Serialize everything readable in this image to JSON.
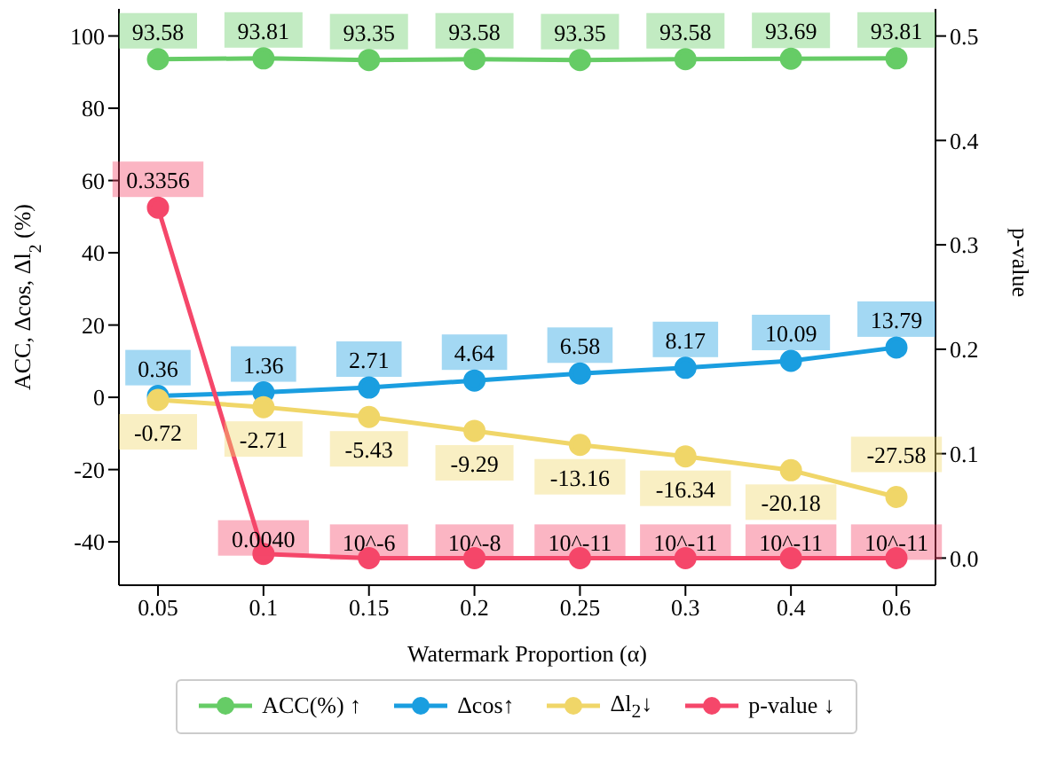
{
  "chart_data": {
    "type": "line",
    "xlabel": "Watermark Proportion (α)",
    "ylabel": "ACC, Δcos, Δl$_{2}$ (%)",
    "y2label": "p-value",
    "categories": [
      "0.05",
      "0.1",
      "0.15",
      "0.2",
      "0.25",
      "0.3",
      "0.4",
      "0.6"
    ],
    "series": [
      {
        "name": "ACC(%) ↑",
        "color": "#66cc66",
        "values": [
          93.58,
          93.81,
          93.35,
          93.58,
          93.35,
          93.58,
          93.69,
          93.81
        ],
        "value_labels": [
          "93.58",
          "93.81",
          "93.35",
          "93.58",
          "93.35",
          "93.58",
          "93.69",
          "93.81"
        ]
      },
      {
        "name": "Δcos↑",
        "color": "#1a9ee0",
        "values": [
          0.36,
          1.36,
          2.71,
          4.64,
          6.58,
          8.17,
          10.09,
          13.79
        ],
        "value_labels": [
          "0.36",
          "1.36",
          "2.71",
          "4.64",
          "6.58",
          "8.17",
          "10.09",
          "13.79"
        ]
      },
      {
        "name": "Δl$_{2}$↓",
        "color": "#f0d668",
        "values": [
          -0.72,
          -2.71,
          -5.43,
          -9.29,
          -13.16,
          -16.34,
          -20.18,
          -27.58
        ],
        "value_labels": [
          "-0.72",
          "-2.71",
          "-5.43",
          "-9.29",
          "-13.16",
          "-16.34",
          "-20.18",
          "-27.58"
        ]
      },
      {
        "name": "p-value ↓",
        "color": "#f5476a",
        "axis": "y2",
        "values": [
          0.3356,
          0.004,
          1e-06,
          1e-08,
          1e-11,
          1e-11,
          1e-11,
          1e-11
        ],
        "value_labels": [
          "0.3356",
          "0.0040",
          "10^-6",
          "10^-8",
          "10^-11",
          "10^-11",
          "10^-11",
          "10^-11"
        ]
      }
    ],
    "ylim": [
      -52,
      107.5
    ],
    "yticks": [
      -40,
      -20,
      0,
      20,
      40,
      60,
      80,
      100
    ],
    "y2lim": [
      -0.026,
      0.526
    ],
    "y2ticks": [
      {
        "value": 0,
        "label": "0.0"
      },
      0.1,
      0.2,
      0.3,
      0.4,
      0.5
    ],
    "marker": "circle",
    "line_style": "solid",
    "legend": "bottom"
  }
}
